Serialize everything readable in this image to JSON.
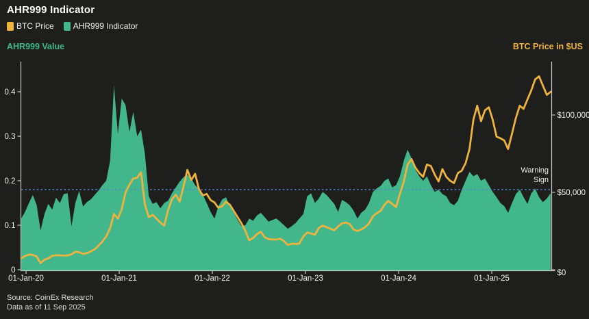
{
  "header": {
    "title": "AHR999 Indicator"
  },
  "legend": [
    {
      "label": "BTC Price",
      "color": "#eeb33f"
    },
    {
      "label": "AHR999 Indicator",
      "color": "#41b78b"
    }
  ],
  "axes": {
    "left_title": "AHR999 Value",
    "right_title": "BTC Price in $US"
  },
  "annotations": {
    "warning_line1": "Warning",
    "warning_line2": "Sign"
  },
  "footer": {
    "source": "Source: CoinEx Research",
    "as_of": "Data as of 11 Sep 2025"
  },
  "colors": {
    "background": "#1e1e1d",
    "green": "#41b78b",
    "orange": "#eeb33f",
    "warning_blue": "#5887d2",
    "axis_gray": "#c9c9c9",
    "text": "#f1f1f1"
  },
  "chart_data": {
    "type": "area+line",
    "title": "AHR999 Indicator",
    "x_ticks": [
      "01-Jan-20",
      "01-Jan-21",
      "01-Jan-22",
      "01-Jan-23",
      "01-Jan-24",
      "01-Jan-25"
    ],
    "left_axis": {
      "title": "AHR999 Value",
      "max": 0.46,
      "ticks": [
        {
          "value": 0,
          "label": "0"
        },
        {
          "value": 0.1,
          "label": "0.1"
        },
        {
          "value": 0.2,
          "label": "0.2"
        },
        {
          "value": 0.3,
          "label": "0.3"
        },
        {
          "value": 0.4,
          "label": "0.4"
        }
      ]
    },
    "right_axis": {
      "title": "BTC Price in $US",
      "max": 132300,
      "ticks": [
        {
          "value": 0,
          "label": "$0"
        },
        {
          "value": 50000,
          "label": "$50,000"
        },
        {
          "value": 100000,
          "label": "$100,000"
        }
      ]
    },
    "warning_level": 0.18,
    "series": [
      {
        "name": "AHR999 Indicator",
        "type": "area",
        "axis": "left",
        "color": "#41b78b",
        "values": [
          0.115,
          0.13,
          0.15,
          0.168,
          0.145,
          0.088,
          0.125,
          0.148,
          0.135,
          0.162,
          0.15,
          0.17,
          0.172,
          0.098,
          0.15,
          0.177,
          0.142,
          0.152,
          0.158,
          0.168,
          0.178,
          0.19,
          0.2,
          0.245,
          0.415,
          0.305,
          0.385,
          0.37,
          0.31,
          0.355,
          0.3,
          0.315,
          0.26,
          0.165,
          0.148,
          0.152,
          0.138,
          0.15,
          0.155,
          0.172,
          0.185,
          0.198,
          0.208,
          0.213,
          0.205,
          0.19,
          0.182,
          0.168,
          0.15,
          0.13,
          0.115,
          0.142,
          0.158,
          0.163,
          0.142,
          0.128,
          0.112,
          0.098,
          0.1,
          0.115,
          0.11,
          0.122,
          0.128,
          0.118,
          0.108,
          0.112,
          0.115,
          0.108,
          0.1,
          0.092,
          0.098,
          0.105,
          0.115,
          0.125,
          0.165,
          0.172,
          0.15,
          0.16,
          0.175,
          0.168,
          0.158,
          0.148,
          0.13,
          0.157,
          0.152,
          0.145,
          0.133,
          0.115,
          0.128,
          0.135,
          0.15,
          0.175,
          0.183,
          0.188,
          0.2,
          0.205,
          0.185,
          0.19,
          0.21,
          0.245,
          0.27,
          0.25,
          0.225,
          0.21,
          0.2,
          0.21,
          0.19,
          0.175,
          0.18,
          0.17,
          0.165,
          0.15,
          0.145,
          0.155,
          0.18,
          0.2,
          0.22,
          0.21,
          0.215,
          0.2,
          0.205,
          0.19,
          0.175,
          0.163,
          0.15,
          0.143,
          0.128,
          0.15,
          0.17,
          0.18,
          0.163,
          0.148,
          0.172,
          0.182,
          0.163,
          0.152,
          0.16,
          0.172
        ]
      },
      {
        "name": "BTC Price",
        "type": "line",
        "axis": "right",
        "color": "#eeb33f",
        "values": [
          7400,
          8900,
          9800,
          9600,
          8500,
          4300,
          6500,
          7300,
          8900,
          9400,
          9300,
          9100,
          9200,
          9900,
          11600,
          11300,
          10300,
          10700,
          11900,
          13200,
          15500,
          18200,
          21500,
          27000,
          36000,
          33000,
          39000,
          50000,
          55000,
          59000,
          59500,
          63000,
          42000,
          34000,
          35500,
          33000,
          30500,
          28500,
          38500,
          45500,
          48500,
          44000,
          54000,
          64500,
          58000,
          62000,
          52000,
          48000,
          49000,
          45000,
          43500,
          40000,
          41000,
          44000,
          42000,
          38000,
          34000,
          30000,
          25000,
          19000,
          20500,
          23000,
          24500,
          21000,
          19800,
          19500,
          19500,
          20000,
          18500,
          16000,
          16800,
          16600,
          17000,
          21500,
          24000,
          23500,
          22500,
          27000,
          28500,
          27500,
          26500,
          25500,
          28000,
          30000,
          30500,
          29500,
          26000,
          25000,
          26000,
          27500,
          30000,
          34500,
          36500,
          38000,
          42000,
          44500,
          42500,
          40500,
          49000,
          57000,
          68000,
          71500,
          66000,
          62500,
          60000,
          68000,
          67000,
          61500,
          57000,
          65000,
          60000,
          57500,
          56000,
          62500,
          64000,
          69000,
          78000,
          97000,
          106000,
          96000,
          103000,
          105000,
          97000,
          86000,
          85000,
          83500,
          78000,
          88000,
          98000,
          106000,
          104000,
          110000,
          116000,
          123000,
          125000,
          119000,
          113000,
          115000
        ]
      }
    ]
  }
}
